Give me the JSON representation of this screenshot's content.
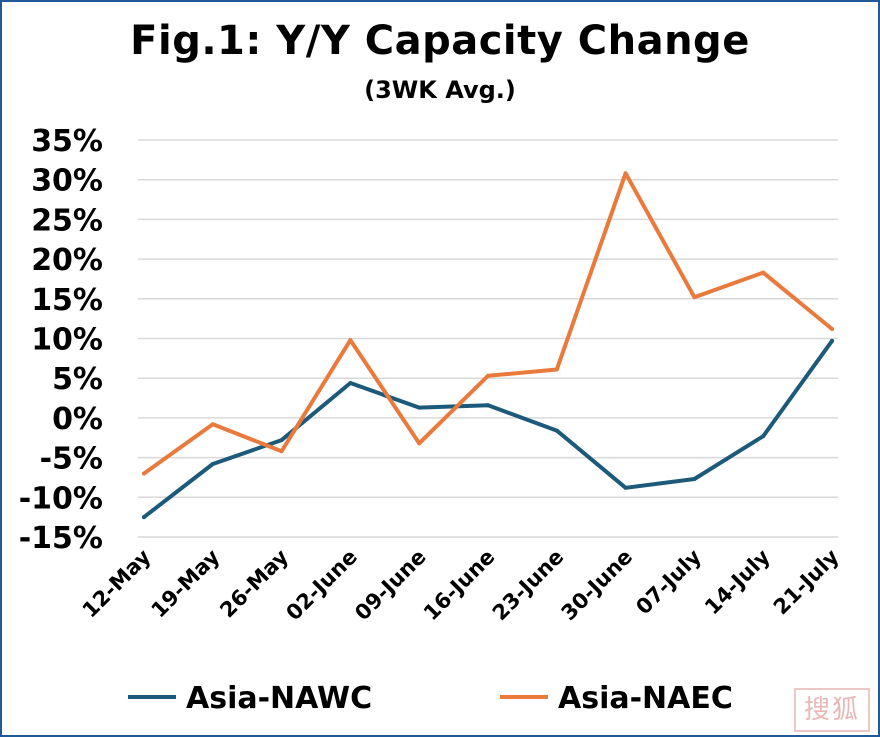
{
  "chart_data": {
    "type": "line",
    "title": "Fig.1: Y/Y Capacity Change",
    "subtitle": "(3WK Avg.)",
    "categories": [
      "12-May",
      "19-May",
      "26-May",
      "02-June",
      "09-June",
      "16-June",
      "23-June",
      "30-June",
      "07-July",
      "14-July",
      "21-July"
    ],
    "series": [
      {
        "name": "Asia-NAWC",
        "color": "#1b5a7a",
        "values": [
          -12.5,
          -5.8,
          -2.8,
          4.4,
          1.3,
          1.6,
          -1.6,
          -8.8,
          -7.7,
          -2.3,
          9.7
        ]
      },
      {
        "name": "Asia-NAEC",
        "color": "#ea7a3c",
        "values": [
          -7.0,
          -0.8,
          -4.2,
          9.8,
          -3.2,
          5.3,
          6.1,
          30.8,
          15.2,
          18.3,
          11.2
        ]
      }
    ],
    "ylim": [
      -15,
      35
    ],
    "yticks": [
      -15,
      -10,
      -5,
      0,
      5,
      10,
      15,
      20,
      25,
      30,
      35
    ],
    "ytick_labels": [
      "-15%",
      "-10%",
      "-5%",
      "0%",
      "5%",
      "10%",
      "15%",
      "20%",
      "25%",
      "30%",
      "35%"
    ],
    "xlabel": "",
    "ylabel": "",
    "grid": true,
    "legend": "bottom"
  },
  "watermark": {
    "text": "搜狐",
    "color": "#e3a0a0"
  }
}
